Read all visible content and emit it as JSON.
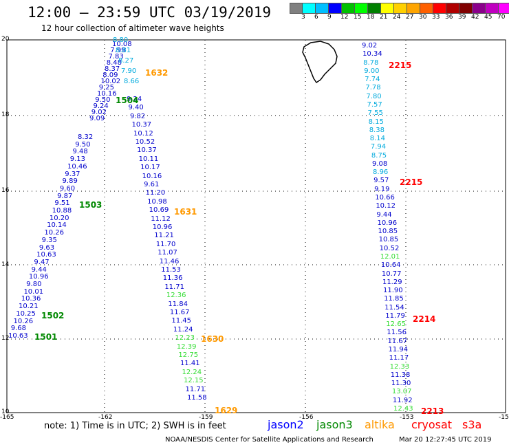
{
  "header": {
    "title": "12:00 – 23:59 UTC 03/19/2019",
    "subtitle": "12 hour collection of altimeter wave heights"
  },
  "scale": {
    "colors": [
      "#808080",
      "#00ffff",
      "#00bfff",
      "#0000ff",
      "#00c000",
      "#00ff00",
      "#008000",
      "#ffff00",
      "#ffd000",
      "#ffa500",
      "#ff6000",
      "#ff0000",
      "#b00000",
      "#800000",
      "#8b008b",
      "#c000c0",
      "#ff00ff",
      "#000000"
    ],
    "labels": [
      "3",
      "6",
      "9",
      "12",
      "15",
      "18",
      "21",
      "24",
      "27",
      "30",
      "33",
      "36",
      "39",
      "42",
      "45",
      "70",
      "(ft)"
    ]
  },
  "axes": {
    "lat_labels": [
      "20",
      "18",
      "16",
      "14",
      "12",
      "10"
    ],
    "lon_labels": [
      "-165",
      "-162",
      "-159",
      "-156",
      "-153",
      "-15"
    ]
  },
  "tracks": [
    {
      "color": "#0000cc",
      "values": [
        "10.08",
        "7.99",
        "7.83",
        "8.48",
        "8.37",
        "8.09",
        "10.02",
        "9.25",
        "10.16",
        "9.50",
        "9.24",
        "9.02",
        "9.09"
      ]
    },
    {
      "color": "#00aadd",
      "values": [
        "8.80",
        "8.81",
        "8.27",
        "7.90",
        "8.66"
      ]
    },
    {
      "color": "#0000cc",
      "values": [
        "8.32",
        "9.50",
        "9.48",
        "9.13",
        "10.46",
        "9.37",
        "9.89",
        "9.60",
        "9.87",
        "9.51",
        "10.88",
        "10.20",
        "10.14",
        "10.26",
        "9.35",
        "9.63",
        "10.63",
        "9.47",
        "9.44",
        "10.96",
        "9.80",
        "10.01",
        "10.36",
        "10.21",
        "10.25",
        "10.26",
        "9.68",
        "10.63"
      ]
    },
    {
      "color": "#0000cc",
      "values": [
        "9.24",
        "9.40",
        "9.82",
        "10.37",
        "10.12",
        "10.52",
        "10.37",
        "10.11",
        "10.17",
        "10.16",
        "9.61",
        "11.20",
        "10.98",
        "10.69",
        "11.12",
        "10.96",
        "11.21",
        "11.70",
        "11.07",
        "11.46",
        "11.53",
        "11.36",
        "11.71",
        "12.36",
        "11.84",
        "11.67",
        "11.45",
        "11.24",
        "12.23",
        "12.39",
        "12.75",
        "11.41",
        "12.24",
        "12.15",
        "11.71",
        "11.58"
      ]
    },
    {
      "color": "#0000cc",
      "values": [
        "9.02",
        "10.34",
        "8.78",
        "9.00",
        "7.74",
        "7.78",
        "7.80",
        "7.57",
        "7.55",
        "8.15",
        "8.38",
        "8.14",
        "7.94",
        "8.75",
        "9.08",
        "8.96",
        "9.57",
        "9.19",
        "10.66",
        "10.12",
        "9.44",
        "10.96",
        "10.85",
        "10.85",
        "10.52",
        "12.01",
        "10.64",
        "10.77",
        "11.29",
        "11.90",
        "11.85",
        "11.54",
        "11.79",
        "12.65",
        "11.56",
        "11.67",
        "11.94",
        "11.17",
        "12.33",
        "11.38",
        "11.30",
        "13.07",
        "11.92",
        "12.43"
      ]
    }
  ],
  "time_labels": [
    {
      "text": "1632",
      "color": "#ff9900"
    },
    {
      "text": "1504",
      "color": "#008800"
    },
    {
      "text": "1503",
      "color": "#008800"
    },
    {
      "text": "1631",
      "color": "#ff9900"
    },
    {
      "text": "1502",
      "color": "#008800"
    },
    {
      "text": "1501",
      "color": "#008800"
    },
    {
      "text": "1630",
      "color": "#ff9900"
    },
    {
      "text": "1629",
      "color": "#ff9900"
    },
    {
      "text": "2215",
      "color": "#ff0000"
    },
    {
      "text": "2215",
      "color": "#ff0000"
    },
    {
      "text": "2214",
      "color": "#ff0000"
    },
    {
      "text": "2213",
      "color": "#ff0000"
    }
  ],
  "note": "note:  1) Time is in UTC;  2) SWH is in feet",
  "satellites": [
    {
      "name": "jason2",
      "color": "#0000ff"
    },
    {
      "name": "jason3",
      "color": "#008800"
    },
    {
      "name": "altika",
      "color": "#ff9900"
    },
    {
      "name": "cryosat",
      "color": "#ff0000"
    },
    {
      "name": "s3a",
      "color": "#ff0000"
    }
  ],
  "footer": "NOAA/NESDIS Center for Satellite Applications and Research",
  "timestamp": "Mar 20 12:27:45 UTC 2019"
}
